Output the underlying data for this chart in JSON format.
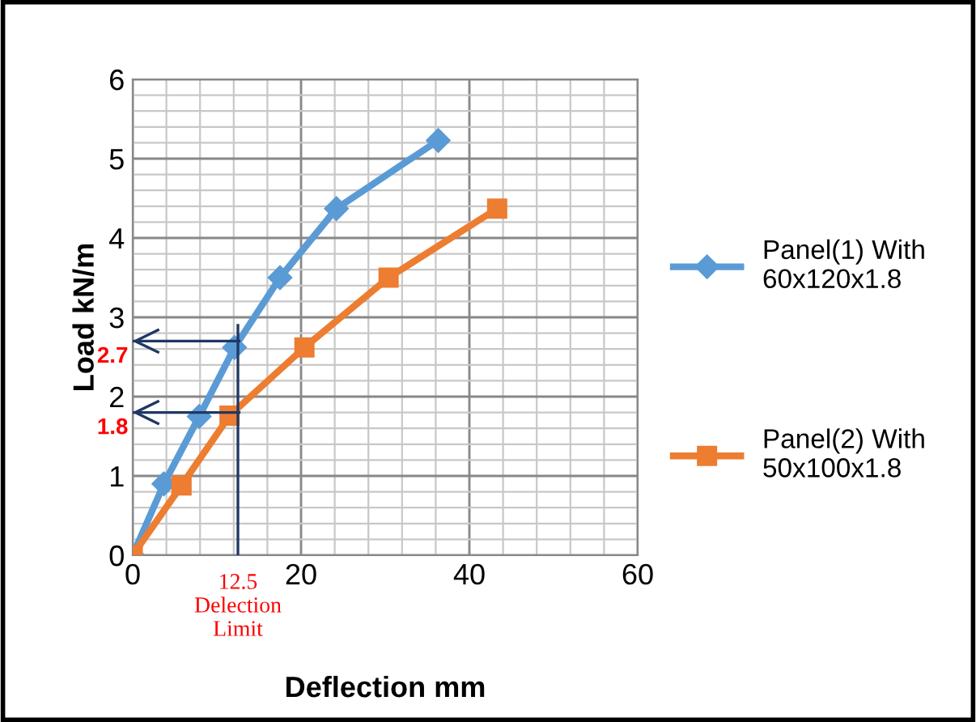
{
  "chart_data": {
    "type": "line",
    "xlabel": "Deflection mm",
    "ylabel": "Load kN/m",
    "xlim": [
      0,
      60
    ],
    "xticks": [
      0,
      20,
      40,
      60
    ],
    "ylim": [
      0,
      6
    ],
    "yticks": [
      0,
      1,
      2,
      3,
      4,
      5,
      6
    ],
    "grid": true,
    "legend": "right",
    "line_style": "solid",
    "series": [
      {
        "name": "Panel(1) With\n60x120x1.8",
        "color": "#5b9bd5",
        "marker": "diamond",
        "x": [
          0,
          3.7,
          7.9,
          12.1,
          17.5,
          24.2,
          36.3
        ],
        "values": [
          0,
          0.9,
          1.75,
          2.62,
          3.5,
          4.37,
          5.23
        ]
      },
      {
        "name": "Panel(2) With\n50x100x1.8",
        "color": "#ed7d31",
        "marker": "square",
        "x": [
          0,
          5.8,
          11.5,
          20.4,
          30.4,
          43.3
        ],
        "values": [
          0,
          0.88,
          1.76,
          2.62,
          3.5,
          4.37
        ]
      }
    ],
    "ref_lines": [
      {
        "axis": "x",
        "value": 12.5,
        "label": "12.5\nDelection\nLimit",
        "color": "#1f3864"
      },
      {
        "axis": "y",
        "value": 2.7,
        "label": "2.7",
        "color": "#1f3864"
      },
      {
        "axis": "y",
        "value": 1.8,
        "label": "1.8",
        "color": "#1f3864"
      }
    ]
  }
}
